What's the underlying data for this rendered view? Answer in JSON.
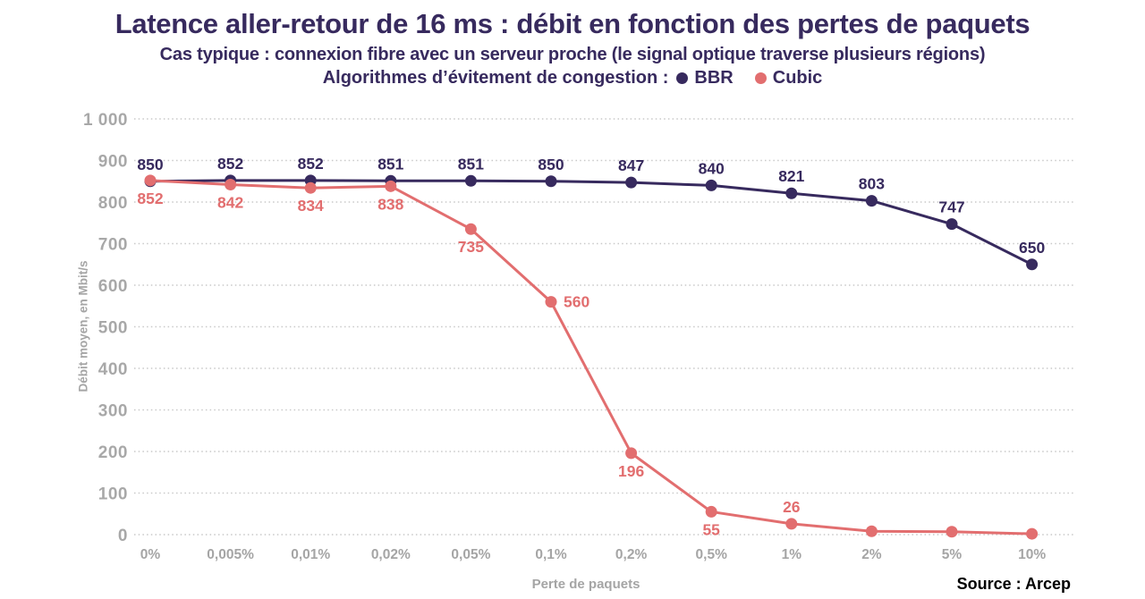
{
  "header": {
    "title": "Latence aller-retour de 16 ms : débit en fonction des pertes de paquets",
    "subtitle": "Cas typique : connexion fibre avec un serveur proche (le signal optique traverse plusieurs régions)",
    "legend_label": "Algorithmes d’évitement de congestion :",
    "legend": [
      {
        "name": "BBR",
        "color": "#372a5e"
      },
      {
        "name": "Cubic",
        "color": "#e26e6f"
      }
    ]
  },
  "chart_data": {
    "type": "line",
    "categories": [
      "0%",
      "0,005%",
      "0,01%",
      "0,02%",
      "0,05%",
      "0,1%",
      "0,2%",
      "0,5%",
      "1%",
      "2%",
      "5%",
      "10%"
    ],
    "series": [
      {
        "name": "BBR",
        "color": "#372a5e",
        "values": [
          850,
          852,
          852,
          851,
          851,
          850,
          847,
          840,
          821,
          803,
          747,
          650
        ],
        "label_placement": [
          "above",
          "above",
          "above",
          "above",
          "above",
          "above",
          "above",
          "above",
          "above",
          "above",
          "above",
          "above"
        ]
      },
      {
        "name": "Cubic",
        "color": "#e26e6f",
        "values": [
          852,
          842,
          834,
          838,
          735,
          560,
          196,
          55,
          26,
          8,
          7,
          2
        ],
        "label_placement": [
          "below",
          "below",
          "below",
          "below",
          "below",
          "right",
          "below",
          "below",
          "above",
          null,
          null,
          null
        ]
      }
    ],
    "xlabel": "Perte de paquets",
    "ylabel": "Débit moyen, en Mbit/s",
    "ylim": [
      0,
      1000
    ],
    "ytick_step": 100,
    "ytick_top_label": "1 000",
    "grid": "dotted horizontal",
    "legend_position": "top"
  },
  "footer": {
    "source": "Source : Arcep"
  }
}
